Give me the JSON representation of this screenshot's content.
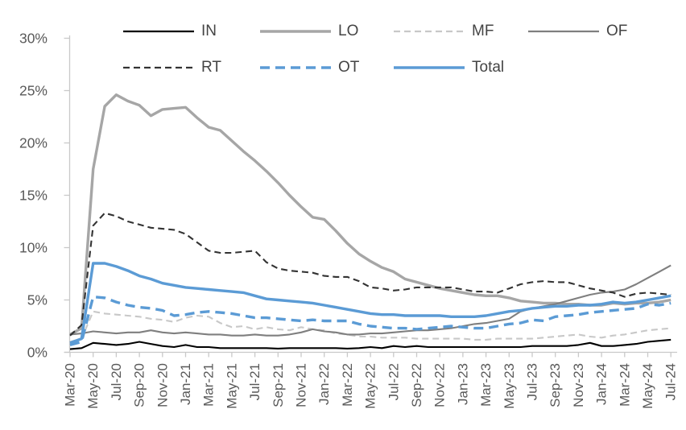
{
  "chart_data": {
    "type": "line",
    "title": "",
    "xlabel": "",
    "ylabel": "",
    "ylim": [
      0,
      30
    ],
    "y_unit": "%",
    "grid": "off",
    "legend_position": "top-inside-two-rows",
    "axis_color": "#c9c9c9",
    "label_color": "#595959",
    "accent_blue": "#5b9bd5",
    "y_tick_values": [
      0,
      5,
      10,
      15,
      20,
      25,
      30
    ],
    "y_tick_labels": [
      "0%",
      "5%",
      "10%",
      "15%",
      "20%",
      "25%",
      "30%"
    ],
    "x_tick_labels": [
      "Mar-20",
      "May-20",
      "Jul-20",
      "Sep-20",
      "Nov-20",
      "Jan-21",
      "Mar-21",
      "May-21",
      "Jul-21",
      "Sep-21",
      "Nov-21",
      "Jan-22",
      "Mar-22",
      "May-22",
      "Jul-22",
      "Sep-22",
      "Nov-22",
      "Jan-23",
      "Mar-23",
      "May-23",
      "Jul-23",
      "Sep-23",
      "Nov-23",
      "Jan-24",
      "Mar-24",
      "May-24",
      "Jul-24"
    ],
    "x_frequency": "monthly (labels every 2 months)",
    "legend_rows": [
      [
        0,
        1,
        2,
        3
      ],
      [
        4,
        5,
        6
      ]
    ],
    "series": [
      {
        "name": "IN",
        "color": "#000000",
        "line": "solid",
        "weight": "thin",
        "values": [
          0.3,
          0.4,
          0.9,
          0.8,
          0.7,
          0.8,
          1.0,
          0.8,
          0.6,
          0.5,
          0.7,
          0.5,
          0.5,
          0.4,
          0.4,
          0.4,
          0.4,
          0.4,
          0.35,
          0.4,
          0.4,
          0.4,
          0.4,
          0.4,
          0.35,
          0.4,
          0.5,
          0.4,
          0.6,
          0.5,
          0.6,
          0.5,
          0.5,
          0.5,
          0.5,
          0.5,
          0.5,
          0.5,
          0.5,
          0.5,
          0.6,
          0.6,
          0.6,
          0.6,
          0.7,
          0.9,
          0.6,
          0.6,
          0.7,
          0.8,
          1.0,
          1.1,
          1.2
        ]
      },
      {
        "name": "LO",
        "color": "#a6a6a6",
        "line": "solid",
        "weight": "thick",
        "values": [
          1.7,
          2.3,
          17.5,
          23.5,
          24.6,
          24.0,
          23.6,
          22.6,
          23.2,
          23.3,
          23.4,
          22.4,
          21.5,
          21.2,
          20.2,
          19.2,
          18.3,
          17.3,
          16.2,
          15.0,
          13.9,
          12.9,
          12.7,
          11.6,
          10.4,
          9.4,
          8.7,
          8.1,
          7.7,
          7.0,
          6.7,
          6.4,
          6.1,
          5.9,
          5.7,
          5.5,
          5.4,
          5.4,
          5.2,
          4.9,
          4.8,
          4.7,
          4.7,
          4.6,
          4.6,
          4.5,
          4.5,
          4.7,
          4.6,
          4.7,
          4.7,
          4.8,
          5.0
        ]
      },
      {
        "name": "MF",
        "color": "#c8c8c8",
        "line": "dashed",
        "weight": "thin",
        "values": [
          1.0,
          1.3,
          3.9,
          3.7,
          3.6,
          3.5,
          3.4,
          3.2,
          3.1,
          2.9,
          3.3,
          3.5,
          3.4,
          2.8,
          2.4,
          2.5,
          2.2,
          2.4,
          2.2,
          2.1,
          2.4,
          2.2,
          2.1,
          1.8,
          1.7,
          1.5,
          1.5,
          1.4,
          1.4,
          1.4,
          1.3,
          1.3,
          1.3,
          1.3,
          1.3,
          1.2,
          1.2,
          1.3,
          1.3,
          1.3,
          1.3,
          1.4,
          1.5,
          1.6,
          1.7,
          1.5,
          1.4,
          1.6,
          1.7,
          1.9,
          2.1,
          2.2,
          2.3
        ]
      },
      {
        "name": "OF",
        "color": "#7f7f7f",
        "line": "solid",
        "weight": "thin",
        "values": [
          1.7,
          1.8,
          2.0,
          1.9,
          1.8,
          1.9,
          1.9,
          2.1,
          1.9,
          1.8,
          1.9,
          1.8,
          1.7,
          1.7,
          1.6,
          1.6,
          1.7,
          1.6,
          1.6,
          1.7,
          1.9,
          2.2,
          2.0,
          1.9,
          1.7,
          1.7,
          1.8,
          1.8,
          1.9,
          2.0,
          2.1,
          2.1,
          2.2,
          2.3,
          2.5,
          2.7,
          2.8,
          3.0,
          3.2,
          3.9,
          4.2,
          4.4,
          4.6,
          4.9,
          5.2,
          5.5,
          5.7,
          5.8,
          6.0,
          6.5,
          7.1,
          7.7,
          8.3
        ]
      },
      {
        "name": "RT",
        "color": "#333333",
        "line": "dashed",
        "weight": "thin",
        "values": [
          1.6,
          2.6,
          12.1,
          13.3,
          13.0,
          12.5,
          12.2,
          11.9,
          11.8,
          11.7,
          11.3,
          10.5,
          9.7,
          9.5,
          9.5,
          9.6,
          9.7,
          8.6,
          8.0,
          7.8,
          7.7,
          7.6,
          7.3,
          7.2,
          7.2,
          6.8,
          6.2,
          6.1,
          5.9,
          6.0,
          6.2,
          6.2,
          6.2,
          6.2,
          6.0,
          5.8,
          5.8,
          5.7,
          6.1,
          6.5,
          6.7,
          6.8,
          6.7,
          6.7,
          6.4,
          6.1,
          5.9,
          5.7,
          5.3,
          5.6,
          5.7,
          5.6,
          5.5
        ]
      },
      {
        "name": "OT",
        "color": "#5b9bd5",
        "line": "dashed",
        "weight": "thick",
        "values": [
          0.7,
          1.0,
          5.3,
          5.2,
          4.8,
          4.5,
          4.3,
          4.2,
          4.0,
          3.5,
          3.6,
          3.8,
          3.9,
          3.8,
          3.7,
          3.5,
          3.3,
          3.3,
          3.2,
          3.1,
          3.0,
          3.1,
          3.0,
          3.0,
          3.0,
          2.7,
          2.5,
          2.4,
          2.3,
          2.3,
          2.2,
          2.3,
          2.4,
          2.5,
          2.4,
          2.3,
          2.3,
          2.5,
          2.7,
          2.8,
          3.1,
          3.0,
          3.4,
          3.5,
          3.6,
          3.8,
          3.9,
          4.0,
          4.1,
          4.2,
          4.6,
          4.5,
          4.7
        ]
      },
      {
        "name": "Total",
        "color": "#5b9bd5",
        "line": "solid",
        "weight": "thick",
        "values": [
          0.9,
          1.3,
          8.5,
          8.5,
          8.2,
          7.8,
          7.3,
          7.0,
          6.6,
          6.4,
          6.2,
          6.1,
          6.0,
          5.9,
          5.8,
          5.7,
          5.4,
          5.1,
          5.0,
          4.9,
          4.8,
          4.7,
          4.5,
          4.3,
          4.1,
          3.9,
          3.7,
          3.6,
          3.6,
          3.5,
          3.5,
          3.5,
          3.5,
          3.4,
          3.4,
          3.4,
          3.5,
          3.7,
          3.9,
          4.0,
          4.2,
          4.3,
          4.4,
          4.4,
          4.5,
          4.5,
          4.6,
          4.8,
          4.7,
          4.8,
          5.0,
          5.2,
          5.4
        ]
      }
    ]
  }
}
